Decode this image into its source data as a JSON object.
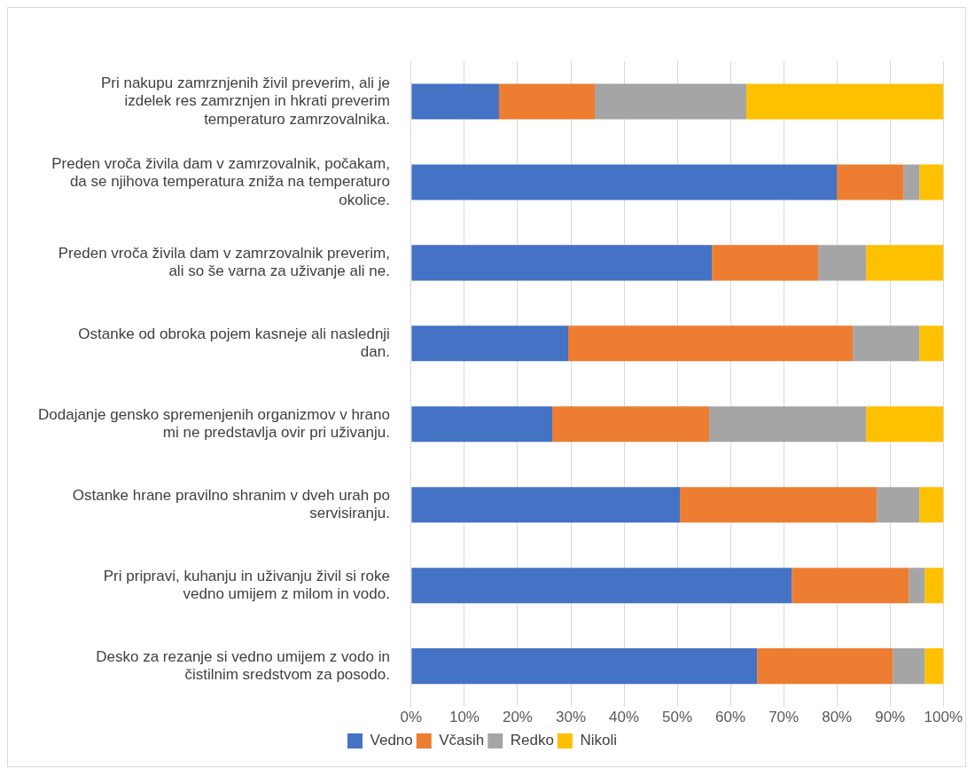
{
  "chart_data": {
    "type": "bar",
    "orientation": "horizontal",
    "stacked": true,
    "categories": [
      "Pri nakupu zamrznjenih živil preverim, ali je izdelek res zamrznjen in hkrati preverim temperaturo zamrzovalnika.",
      "Preden vroča živila dam v zamrzovalnik, počakam, da se njihova temperatura zniža na temperaturo okolice.",
      "Preden vroča živila dam v zamrzovalnik preverim, ali so še varna za uživanje ali ne.",
      "Ostanke od obroka pojem kasneje ali naslednji dan.",
      "Dodajanje gensko spremenjenih organizmov v hrano mi ne predstavlja ovir pri uživanju.",
      "Ostanke hrane pravilno shranim v dveh urah po servisiranju.",
      "Pri pripravi, kuhanju in uživanju živil si roke vedno umijem z milom in vodo.",
      "Desko za rezanje si vedno umijem z vodo in čistilnim sredstvom za posodo."
    ],
    "series": [
      {
        "name": "Vedno",
        "color": "#4472c4",
        "values": [
          16.5,
          80,
          56.5,
          29.5,
          26.5,
          50.5,
          71.5,
          65
        ]
      },
      {
        "name": "Včasih",
        "color": "#ed7d31",
        "values": [
          18,
          12.5,
          20,
          53.5,
          29.5,
          37,
          22,
          25.5
        ]
      },
      {
        "name": "Redko",
        "color": "#a5a5a5",
        "values": [
          28.5,
          3,
          9,
          12.5,
          29.5,
          8,
          3,
          6
        ]
      },
      {
        "name": "Nikoli",
        "color": "#ffc000",
        "values": [
          37,
          4.5,
          14.5,
          4.5,
          14.5,
          4.5,
          3.5,
          3.5
        ]
      }
    ],
    "xlim": [
      0,
      100
    ],
    "xticks": [
      {
        "value": 0,
        "label": "0%"
      },
      {
        "value": 10,
        "label": "10%"
      },
      {
        "value": 20,
        "label": "20%"
      },
      {
        "value": 30,
        "label": "30%"
      },
      {
        "value": 40,
        "label": "40%"
      },
      {
        "value": 50,
        "label": "50%"
      },
      {
        "value": 60,
        "label": "60%"
      },
      {
        "value": 70,
        "label": "70%"
      },
      {
        "value": 80,
        "label": "80%"
      },
      {
        "value": 90,
        "label": "90%"
      },
      {
        "value": 100,
        "label": "100%"
      }
    ],
    "grid": "x",
    "legend": "bottom"
  }
}
